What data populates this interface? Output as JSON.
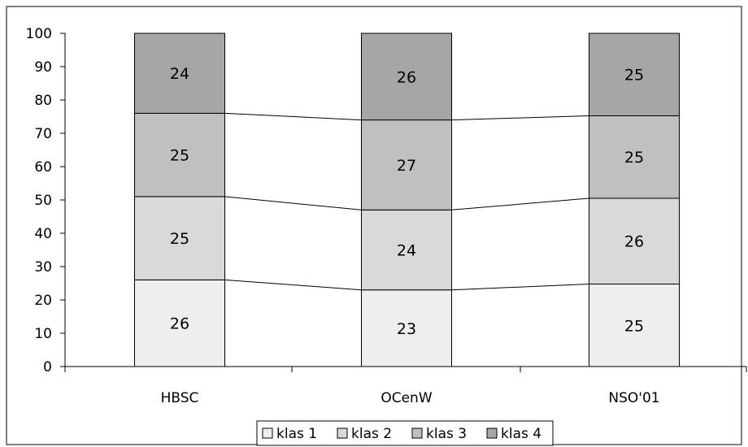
{
  "chart_data": {
    "type": "bar",
    "stacked": true,
    "percent_stacked": true,
    "categories": [
      "HBSC",
      "OCenW",
      "NSO'01"
    ],
    "series": [
      {
        "name": "klas 1",
        "color": "#eeeeee",
        "values": [
          26,
          23,
          25
        ]
      },
      {
        "name": "klas 2",
        "color": "#d9d9d9",
        "values": [
          25,
          24,
          26
        ]
      },
      {
        "name": "klas 3",
        "color": "#c0c0c0",
        "values": [
          25,
          27,
          25
        ]
      },
      {
        "name": "klas 4",
        "color": "#a6a6a6",
        "values": [
          24,
          26,
          25
        ]
      }
    ],
    "ylim": [
      0,
      100
    ],
    "yticks": [
      0,
      10,
      20,
      30,
      40,
      50,
      60,
      70,
      80,
      90,
      100
    ],
    "grid": false,
    "series_connector_lines": true,
    "legend_position": "bottom-center",
    "title": "",
    "xlabel": "",
    "ylabel": ""
  }
}
